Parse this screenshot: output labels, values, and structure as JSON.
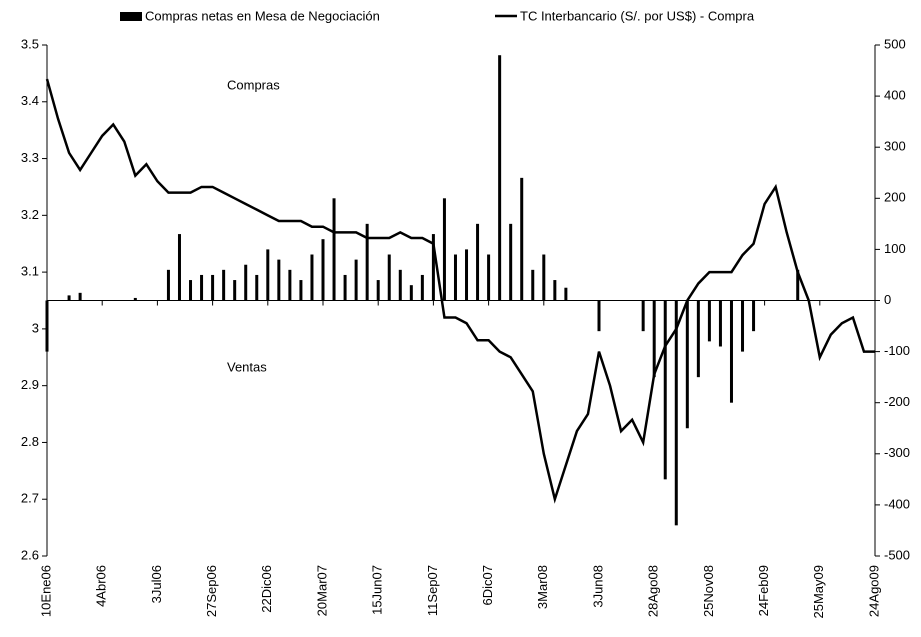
{
  "chart_data": {
    "type": "bar-line",
    "annotations": [
      "Compras",
      "Ventas"
    ],
    "categories": [
      "10Ene06",
      null,
      null,
      null,
      null,
      "4Abr06",
      null,
      null,
      null,
      null,
      "3Jul06",
      null,
      null,
      null,
      null,
      "27Sep06",
      null,
      null,
      null,
      null,
      "22Dic06",
      null,
      null,
      null,
      null,
      "20Mar07",
      null,
      null,
      null,
      null,
      "15Jun07",
      null,
      null,
      null,
      null,
      "11Sep07",
      null,
      null,
      null,
      null,
      "6Dic07",
      null,
      null,
      null,
      null,
      "3Mar08",
      null,
      null,
      null,
      null,
      "3Jun08",
      null,
      null,
      null,
      null,
      "28Ago08",
      null,
      null,
      null,
      null,
      "25Nov08",
      null,
      null,
      null,
      null,
      "24Feb09",
      null,
      null,
      null,
      null,
      "25May09",
      null,
      null,
      null,
      null,
      "24Ago09"
    ],
    "series": [
      {
        "name": "Compras netas en Mesa de Negociación",
        "type": "bar",
        "axis": "y2",
        "color": "#000000",
        "values": [
          -100,
          0,
          10,
          15,
          0,
          0,
          0,
          0,
          5,
          0,
          0,
          60,
          130,
          40,
          50,
          50,
          60,
          40,
          70,
          50,
          100,
          80,
          60,
          40,
          90,
          120,
          200,
          50,
          80,
          150,
          40,
          90,
          60,
          30,
          50,
          130,
          200,
          90,
          100,
          150,
          90,
          480,
          150,
          240,
          60,
          90,
          40,
          25,
          0,
          0,
          -60,
          0,
          0,
          0,
          -60,
          -150,
          -350,
          -440,
          -250,
          -150,
          -80,
          -90,
          -200,
          -100,
          -60,
          0,
          0,
          0,
          60,
          0,
          0,
          0,
          0,
          0,
          0,
          0
        ]
      },
      {
        "name": "TC Interbancario (S/. por US$) - Compra",
        "type": "line",
        "axis": "y",
        "color": "#000000",
        "values": [
          3.44,
          3.37,
          3.31,
          3.28,
          3.31,
          3.34,
          3.36,
          3.33,
          3.27,
          3.29,
          3.26,
          3.24,
          3.24,
          3.24,
          3.25,
          3.25,
          3.24,
          3.23,
          3.22,
          3.21,
          3.2,
          3.19,
          3.19,
          3.19,
          3.18,
          3.18,
          3.17,
          3.17,
          3.17,
          3.16,
          3.16,
          3.16,
          3.17,
          3.16,
          3.16,
          3.15,
          3.02,
          3.02,
          3.01,
          2.98,
          2.98,
          2.96,
          2.95,
          2.92,
          2.89,
          2.78,
          2.7,
          2.76,
          2.82,
          2.85,
          2.96,
          2.9,
          2.82,
          2.84,
          2.8,
          2.92,
          2.97,
          3.0,
          3.05,
          3.08,
          3.1,
          3.1,
          3.1,
          3.13,
          3.15,
          3.22,
          3.25,
          3.17,
          3.1,
          3.05,
          2.95,
          2.99,
          3.01,
          3.02,
          2.96,
          2.96
        ]
      }
    ],
    "ylim": [
      2.6,
      3.5
    ],
    "yticks": [
      3.5,
      3.4,
      3.3,
      3.2,
      3.1,
      3,
      2.9,
      2.8,
      2.7,
      2.6
    ],
    "y2lim": [
      -500,
      500
    ],
    "y2ticks": [
      500,
      400,
      300,
      200,
      100,
      0,
      -100,
      -200,
      -300,
      -400,
      -500
    ],
    "legend": "top"
  }
}
